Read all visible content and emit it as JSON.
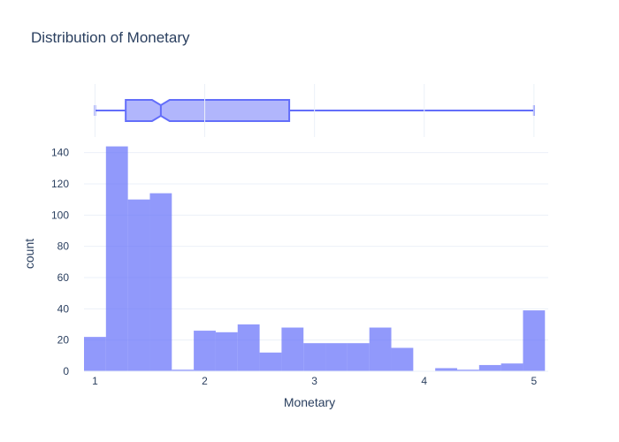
{
  "chart_data": {
    "type": "bar",
    "title": "Distribution of Monetary",
    "xlabel": "Monetary",
    "ylabel": "count",
    "xlim": [
      0.9,
      5.13
    ],
    "ylim": [
      0,
      150
    ],
    "x_ticks": [
      1,
      2,
      3,
      4,
      5
    ],
    "y_ticks": [
      0,
      20,
      40,
      60,
      80,
      100,
      120,
      140
    ],
    "bin_width": 0.2,
    "bins": [
      {
        "x0": 0.9,
        "x1": 1.1,
        "count": 22
      },
      {
        "x0": 1.1,
        "x1": 1.3,
        "count": 144
      },
      {
        "x0": 1.3,
        "x1": 1.5,
        "count": 110
      },
      {
        "x0": 1.5,
        "x1": 1.7,
        "count": 114
      },
      {
        "x0": 1.7,
        "x1": 1.9,
        "count": 1
      },
      {
        "x0": 1.9,
        "x1": 2.1,
        "count": 26
      },
      {
        "x0": 2.1,
        "x1": 2.3,
        "count": 25
      },
      {
        "x0": 2.3,
        "x1": 2.5,
        "count": 30
      },
      {
        "x0": 2.5,
        "x1": 2.7,
        "count": 12
      },
      {
        "x0": 2.7,
        "x1": 2.9,
        "count": 28
      },
      {
        "x0": 2.9,
        "x1": 3.1,
        "count": 18
      },
      {
        "x0": 3.1,
        "x1": 3.3,
        "count": 18
      },
      {
        "x0": 3.3,
        "x1": 3.5,
        "count": 18
      },
      {
        "x0": 3.5,
        "x1": 3.7,
        "count": 28
      },
      {
        "x0": 3.7,
        "x1": 3.9,
        "count": 15
      },
      {
        "x0": 3.9,
        "x1": 4.1,
        "count": 0
      },
      {
        "x0": 4.1,
        "x1": 4.3,
        "count": 2
      },
      {
        "x0": 4.3,
        "x1": 4.5,
        "count": 1
      },
      {
        "x0": 4.5,
        "x1": 4.7,
        "count": 4
      },
      {
        "x0": 4.7,
        "x1": 4.9,
        "count": 5
      },
      {
        "x0": 4.9,
        "x1": 5.1,
        "count": 39
      }
    ],
    "box": {
      "min": 1.0,
      "q1": 1.28,
      "median": 1.6,
      "q3": 2.77,
      "max": 5.0,
      "notch_low": 1.52,
      "notch_high": 1.68
    },
    "grid": true,
    "legend": "none",
    "colors": {
      "bar_fill": "#636efa",
      "bar_opacity": 0.7,
      "box_stroke": "#636efa",
      "box_fill": "#b1b6fc",
      "grid": "#ebf0f8",
      "text": "#2a3f5f"
    }
  }
}
